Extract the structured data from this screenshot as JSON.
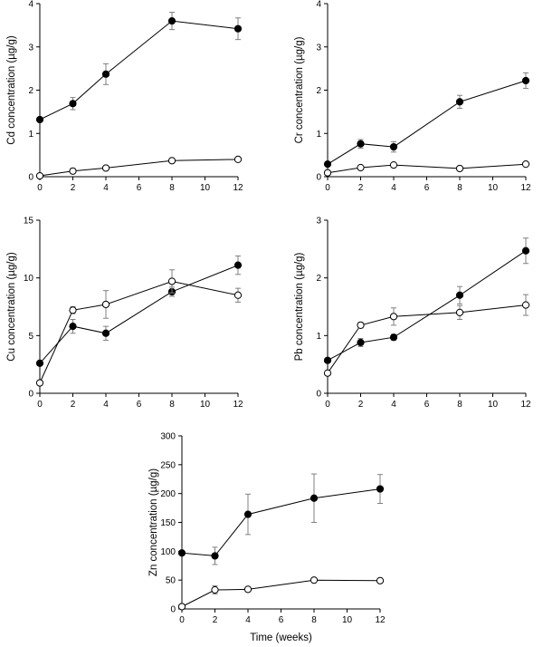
{
  "chart_data": [
    {
      "id": "cd",
      "type": "scatter",
      "ylabel": "Cd concentration (µg/g)",
      "xlabel": "",
      "xlim": [
        0,
        12
      ],
      "ylim": [
        0,
        4
      ],
      "xticks": [
        0,
        2,
        4,
        6,
        8,
        10,
        12
      ],
      "yticks": [
        0,
        1,
        2,
        3,
        4
      ],
      "x": [
        0,
        2,
        4,
        8,
        12
      ],
      "series": [
        {
          "marker": "filled",
          "values": [
            1.32,
            1.69,
            2.37,
            3.6,
            3.42
          ],
          "err": [
            0.05,
            0.14,
            0.24,
            0.2,
            0.25
          ]
        },
        {
          "marker": "open",
          "values": [
            0.02,
            0.13,
            0.2,
            0.37,
            0.4
          ],
          "err": [
            0.02,
            0.03,
            0.03,
            0.03,
            0.03
          ]
        }
      ]
    },
    {
      "id": "cr",
      "type": "scatter",
      "ylabel": "Cr concentration (µg/g)",
      "xlabel": "",
      "xlim": [
        0,
        12
      ],
      "ylim": [
        0,
        4
      ],
      "xticks": [
        0,
        2,
        4,
        6,
        8,
        10,
        12
      ],
      "yticks": [
        0,
        1,
        2,
        3,
        4
      ],
      "x": [
        0,
        2,
        4,
        8,
        12
      ],
      "series": [
        {
          "marker": "filled",
          "values": [
            0.29,
            0.76,
            0.69,
            1.73,
            2.22
          ],
          "err": [
            0.03,
            0.1,
            0.12,
            0.15,
            0.18
          ]
        },
        {
          "marker": "open",
          "values": [
            0.09,
            0.21,
            0.27,
            0.19,
            0.29
          ],
          "err": [
            0.02,
            0.03,
            0.03,
            0.03,
            0.03
          ]
        }
      ]
    },
    {
      "id": "cu",
      "type": "scatter",
      "ylabel": "Cu concentration (µg/g)",
      "xlabel": "",
      "xlim": [
        0,
        12
      ],
      "ylim": [
        0,
        15
      ],
      "xticks": [
        0,
        2,
        4,
        6,
        8,
        10,
        12
      ],
      "yticks": [
        0,
        5,
        10,
        15
      ],
      "x": [
        0,
        2,
        4,
        8,
        12
      ],
      "series": [
        {
          "marker": "filled",
          "values": [
            2.6,
            5.8,
            5.2,
            8.8,
            11.1
          ],
          "err": [
            0.1,
            0.6,
            0.6,
            0.4,
            0.8
          ]
        },
        {
          "marker": "open",
          "values": [
            0.9,
            7.2,
            7.7,
            9.7,
            8.5
          ],
          "err": [
            0.1,
            0.3,
            1.2,
            1.0,
            0.6
          ]
        }
      ]
    },
    {
      "id": "pb",
      "type": "scatter",
      "ylabel": "Pb concentration (µg/g)",
      "xlabel": "",
      "xlim": [
        0,
        12
      ],
      "ylim": [
        0,
        3
      ],
      "xticks": [
        0,
        2,
        4,
        6,
        8,
        10,
        12
      ],
      "yticks": [
        0,
        1,
        2,
        3
      ],
      "x": [
        0,
        2,
        4,
        8,
        12
      ],
      "series": [
        {
          "marker": "filled",
          "values": [
            0.57,
            0.88,
            0.97,
            1.7,
            2.47
          ],
          "err": [
            0.03,
            0.07,
            0.05,
            0.15,
            0.22
          ]
        },
        {
          "marker": "open",
          "values": [
            0.35,
            1.18,
            1.33,
            1.4,
            1.53
          ],
          "err": [
            0.03,
            0.05,
            0.15,
            0.12,
            0.18
          ]
        }
      ]
    },
    {
      "id": "zn",
      "type": "scatter",
      "ylabel": "Zn concentration (µg/g)",
      "xlabel": "Time (weeks)",
      "xlim": [
        0,
        12
      ],
      "ylim": [
        0,
        300
      ],
      "xticks": [
        0,
        2,
        4,
        6,
        8,
        10,
        12
      ],
      "yticks": [
        0,
        50,
        100,
        150,
        200,
        250,
        300
      ],
      "x": [
        0,
        2,
        4,
        8,
        12
      ],
      "series": [
        {
          "marker": "filled",
          "values": [
            97,
            92,
            164,
            192,
            208
          ],
          "err": [
            3,
            15,
            35,
            42,
            25
          ]
        },
        {
          "marker": "open",
          "values": [
            4,
            33,
            34,
            50,
            49
          ],
          "err": [
            2,
            7,
            4,
            3,
            3
          ]
        }
      ]
    }
  ]
}
